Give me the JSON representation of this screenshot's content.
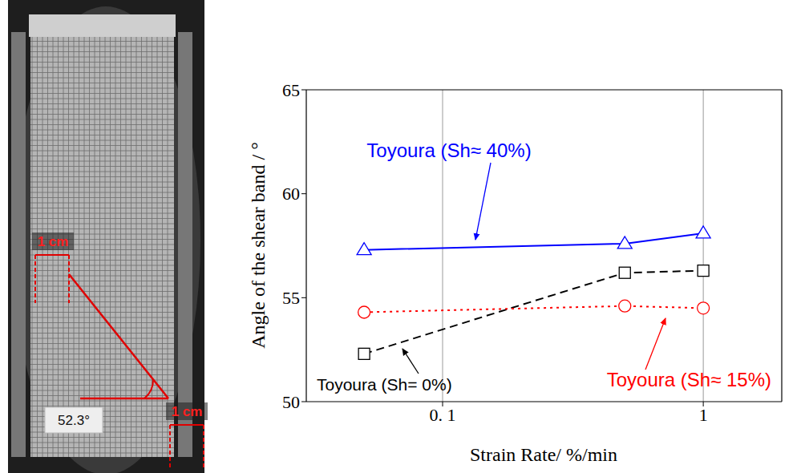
{
  "chart_data": {
    "type": "line",
    "xlabel": "Strain Rate/ %/min",
    "ylabel": "Angle of the shear band / °",
    "log": "x",
    "xlim": [
      0.03,
      2
    ],
    "xticks": [
      {
        "value": 0.1,
        "label": "0. 1"
      },
      1
    ],
    "ylim": [
      50,
      65
    ],
    "yticks": [
      50,
      55,
      60,
      65
    ],
    "grid": "x",
    "x": [
      0.05,
      0.5,
      1
    ],
    "series": [
      {
        "name": "Toyoura (Sh≈ 40%)",
        "color": "#0000ff",
        "marker": "triangle",
        "line_style": "solid",
        "values": [
          57.3,
          57.6,
          58.1
        ]
      },
      {
        "name": "Toyoura (Sh= 0%)",
        "color": "#000000",
        "marker": "square",
        "line_style": "dashed",
        "values": [
          52.3,
          56.2,
          56.3
        ]
      },
      {
        "name": "Toyoura (Sh≈ 15%)",
        "color": "#ff0000",
        "marker": "circle",
        "line_style": "dotted",
        "values": [
          54.3,
          54.6,
          54.5
        ]
      }
    ]
  },
  "photo": {
    "scale_labels": [
      "1 cm",
      "1 cm"
    ],
    "angle_label": "52.3°"
  }
}
